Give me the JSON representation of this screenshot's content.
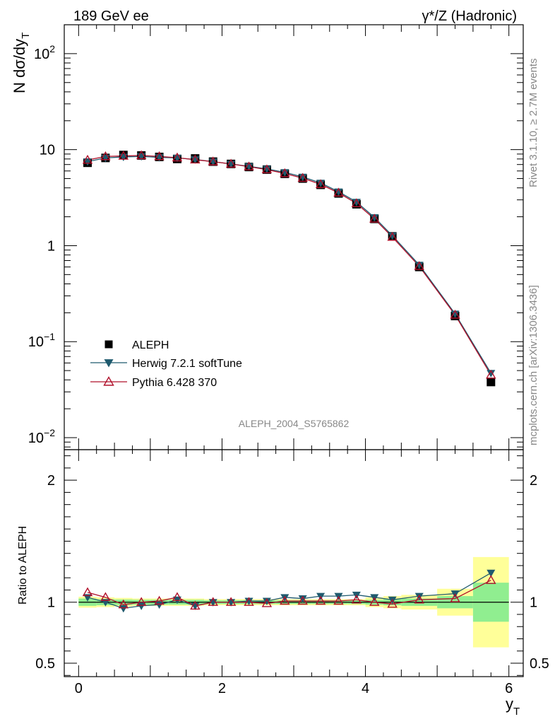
{
  "header": {
    "left_title": "189 GeV ee",
    "right_title": "γ*/Z (Hadronic)"
  },
  "side_labels": {
    "rivet": "Rivet 3.1.10, ≥ 2.7M events",
    "mcplots": "mcplots.cern.ch [arXiv:1306.3436]"
  },
  "watermark": "ALEPH_2004_S5765862",
  "colors": {
    "data": "#000000",
    "herwig": "#1f5a6e",
    "pythia": "#b0102a",
    "band_inner": "#90ee90",
    "band_outer": "#ffff99"
  },
  "chart_data": [
    {
      "type": "line",
      "panel": "main",
      "yscale": "log",
      "ylabel": "N dσ/dy_T",
      "xlabel": "y_T",
      "xlim": [
        -0.2,
        6.2
      ],
      "ylim": [
        0.0075,
        200
      ],
      "y_tick_labels": [
        {
          "value": 0.01,
          "base": "10",
          "exp": "−2"
        },
        {
          "value": 0.1,
          "base": "10",
          "exp": "−1"
        },
        {
          "value": 1,
          "base": "1",
          "exp": ""
        },
        {
          "value": 10,
          "base": "10",
          "exp": ""
        },
        {
          "value": 100,
          "base": "10",
          "exp": "2"
        }
      ],
      "x": [
        0.125,
        0.375,
        0.625,
        0.875,
        1.125,
        1.375,
        1.625,
        1.875,
        2.125,
        2.375,
        2.625,
        2.875,
        3.125,
        3.375,
        3.625,
        3.875,
        4.125,
        4.375,
        4.75,
        5.25,
        5.75
      ],
      "series": [
        {
          "name": "ALEPH",
          "marker": "square",
          "values": [
            7.3,
            8.2,
            8.8,
            8.7,
            8.4,
            8.0,
            8.1,
            7.5,
            7.1,
            6.6,
            6.2,
            5.6,
            5.0,
            4.3,
            3.5,
            2.7,
            1.9,
            1.25,
            0.6,
            0.185,
            0.038
          ]
        },
        {
          "name": "Herwig 7.2.1 softTune",
          "marker": "triangle-down",
          "values": [
            7.5,
            8.2,
            8.4,
            8.5,
            8.3,
            8.2,
            7.9,
            7.5,
            7.1,
            6.7,
            6.3,
            5.8,
            5.2,
            4.5,
            3.65,
            2.85,
            1.97,
            1.27,
            0.63,
            0.195,
            0.047
          ]
        },
        {
          "name": "Pythia 6.428 370",
          "marker": "triangle-up-open",
          "values": [
            7.8,
            8.5,
            8.6,
            8.7,
            8.5,
            8.25,
            7.85,
            7.5,
            7.1,
            6.65,
            6.2,
            5.65,
            5.05,
            4.35,
            3.55,
            2.75,
            1.9,
            1.23,
            0.61,
            0.19,
            0.045
          ]
        }
      ]
    },
    {
      "type": "line",
      "panel": "ratio",
      "ylabel": "Ratio to ALEPH",
      "xlabel": "y_T",
      "xlim": [
        -0.2,
        6.2
      ],
      "ylim": [
        0.39,
        2.25
      ],
      "y_ticks": [
        0.5,
        1,
        2
      ],
      "y_tick_labels": [
        "0.5",
        "1",
        "2"
      ],
      "x_ticks": [
        0,
        2,
        4,
        6
      ],
      "x_tick_labels": [
        "0",
        "2",
        "4",
        "6"
      ],
      "bin_edges": [
        0,
        0.25,
        0.5,
        0.75,
        1,
        1.25,
        1.5,
        1.75,
        2,
        2.25,
        2.5,
        2.75,
        3,
        3.25,
        3.5,
        3.75,
        4,
        4.25,
        4.5,
        5,
        5.5,
        6
      ],
      "band_inner_halfwidth": [
        0.03,
        0.025,
        0.022,
        0.02,
        0.02,
        0.02,
        0.02,
        0.015,
        0.015,
        0.015,
        0.015,
        0.015,
        0.015,
        0.015,
        0.015,
        0.015,
        0.02,
        0.025,
        0.03,
        0.05,
        0.16
      ],
      "band_outer_halfwidth": [
        0.045,
        0.04,
        0.035,
        0.03,
        0.03,
        0.03,
        0.03,
        0.025,
        0.025,
        0.025,
        0.025,
        0.025,
        0.025,
        0.025,
        0.025,
        0.025,
        0.04,
        0.05,
        0.06,
        0.11,
        0.37
      ],
      "x": [
        0.125,
        0.375,
        0.625,
        0.875,
        1.125,
        1.375,
        1.625,
        1.875,
        2.125,
        2.375,
        2.625,
        2.875,
        3.125,
        3.375,
        3.625,
        3.875,
        4.125,
        4.375,
        4.75,
        5.25,
        5.75
      ],
      "series": [
        {
          "name": "Herwig 7.2.1 softTune",
          "marker": "triangle-down",
          "values": [
            1.04,
            1.0,
            0.95,
            0.97,
            0.98,
            1.02,
            0.97,
            1.0,
            1.0,
            1.01,
            1.01,
            1.04,
            1.03,
            1.05,
            1.05,
            1.06,
            1.04,
            1.02,
            1.05,
            1.07,
            1.24
          ]
        },
        {
          "name": "Pythia 6.428 370",
          "marker": "triangle-up-open",
          "values": [
            1.08,
            1.04,
            0.98,
            1.0,
            1.01,
            1.04,
            0.97,
            1.0,
            1.0,
            1.0,
            0.99,
            1.01,
            1.01,
            1.01,
            1.01,
            1.02,
            1.0,
            0.985,
            1.02,
            1.03,
            1.18
          ]
        }
      ]
    }
  ]
}
